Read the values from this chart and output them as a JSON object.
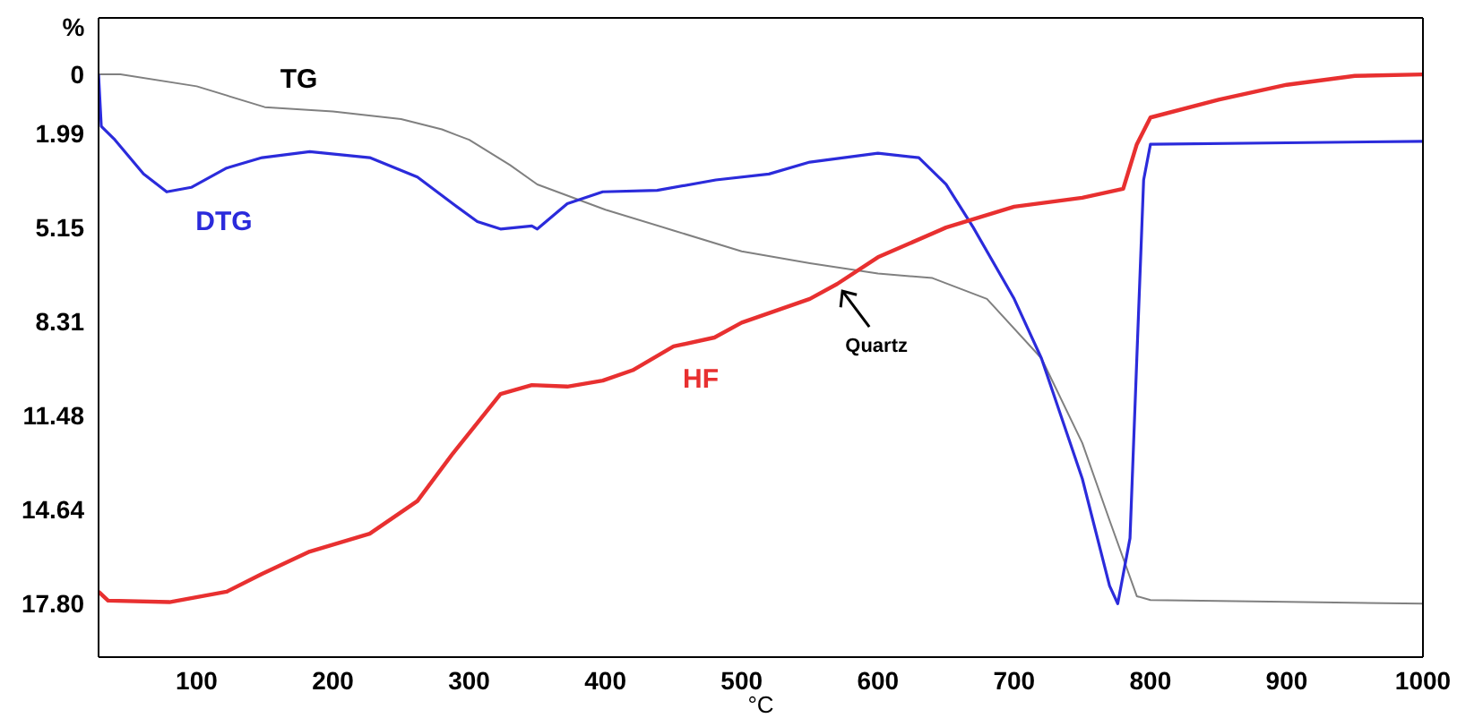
{
  "chart_data": {
    "type": "line",
    "xlabel": "°C",
    "ylabel": "%",
    "xlim": [
      28,
      1000
    ],
    "xticks": [
      100,
      200,
      300,
      400,
      500,
      600,
      700,
      800,
      900,
      1000
    ],
    "ylim": [
      19.6,
      -1.9
    ],
    "yticks": [
      0,
      1.99,
      5.15,
      8.31,
      11.48,
      14.64,
      {
        "value": 17.8,
        "label": "17.80"
      }
    ],
    "marker": "none",
    "line_style": "solid",
    "series": [
      {
        "name": "TG",
        "color": "#808080",
        "x": [
          28,
          44,
          100,
          150,
          200,
          250,
          280,
          300,
          330,
          350,
          400,
          450,
          500,
          550,
          600,
          640,
          680,
          720,
          750,
          770,
          790,
          800,
          900,
          1000
        ],
        "values": [
          0,
          0,
          0.4,
          1.1,
          1.25,
          1.5,
          1.85,
          2.2,
          3.05,
          3.7,
          4.55,
          5.25,
          5.95,
          6.35,
          6.7,
          6.85,
          7.55,
          9.55,
          12.4,
          15.0,
          17.55,
          17.68,
          17.74,
          17.8
        ]
      },
      {
        "name": "DTG",
        "color": "#2b2bdb",
        "x": [
          28,
          30,
          40,
          61,
          78,
          96,
          122,
          148,
          183,
          227,
          262,
          288,
          306,
          323,
          346,
          350,
          372,
          398,
          438,
          481,
          520,
          550,
          600,
          630,
          650,
          670,
          700,
          720,
          750,
          770,
          776,
          785,
          790,
          795,
          800,
          900,
          1000
        ],
        "values": [
          0,
          1.75,
          2.2,
          3.35,
          3.95,
          3.8,
          3.15,
          2.8,
          2.6,
          2.8,
          3.45,
          4.35,
          4.95,
          5.2,
          5.1,
          5.2,
          4.35,
          3.95,
          3.9,
          3.55,
          3.35,
          2.95,
          2.65,
          2.8,
          3.7,
          5.15,
          7.55,
          9.55,
          13.6,
          17.2,
          17.8,
          15.6,
          9.55,
          3.55,
          2.35,
          2.3,
          2.25
        ]
      },
      {
        "name": "HF",
        "color": "#e83030",
        "x": [
          28,
          35,
          80,
          122,
          148,
          183,
          227,
          262,
          288,
          323,
          346,
          372,
          398,
          420,
          450,
          480,
          500,
          550,
          570,
          600,
          650,
          700,
          750,
          780,
          790,
          800,
          850,
          900,
          950,
          1000
        ],
        "values": [
          17.4,
          17.7,
          17.75,
          17.4,
          16.8,
          16.05,
          15.45,
          14.35,
          12.75,
          10.75,
          10.45,
          10.5,
          10.3,
          9.95,
          9.15,
          8.85,
          8.35,
          7.55,
          7.05,
          6.15,
          5.15,
          4.45,
          4.15,
          3.85,
          2.35,
          1.45,
          0.85,
          0.35,
          0.05,
          0
        ]
      }
    ],
    "annotations": [
      {
        "text": "Quartz",
        "x": 570,
        "y": 7.05
      }
    ]
  }
}
